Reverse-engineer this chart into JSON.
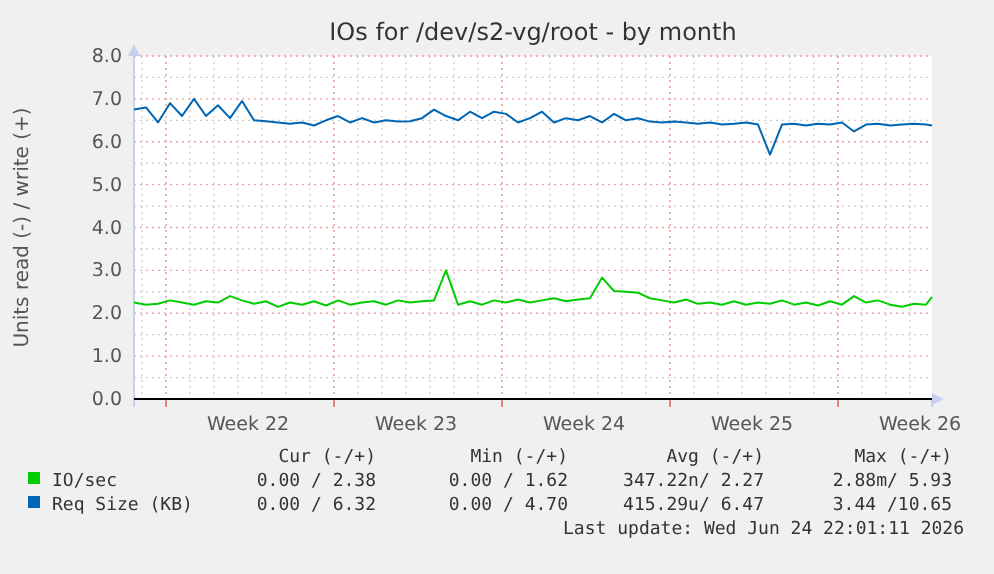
{
  "chart_data": {
    "type": "line",
    "title": "IOs for /dev/s2-vg/root - by month",
    "ylabel": "Units read (-) / write (+)",
    "xlim": [
      "2026-05-22T16:00",
      "2026-06-24T22:00"
    ],
    "xticks": [
      {
        "value": "2026-05-24T00:00",
        "label": null
      },
      {
        "value": "2026-05-27T10:00",
        "label": "Week 22"
      },
      {
        "value": "2026-05-31T00:00",
        "label": null
      },
      {
        "value": "2026-06-03T10:00",
        "label": "Week 23"
      },
      {
        "value": "2026-06-07T00:00",
        "label": null
      },
      {
        "value": "2026-06-10T10:00",
        "label": "Week 24"
      },
      {
        "value": "2026-06-14T00:00",
        "label": null
      },
      {
        "value": "2026-06-17T10:00",
        "label": "Week 25"
      },
      {
        "value": "2026-06-21T00:00",
        "label": null
      },
      {
        "value": "2026-06-24T10:00",
        "label": "Week 26"
      }
    ],
    "ylim": [
      0,
      8
    ],
    "yticks": [
      {
        "value": 0,
        "label": "0.0"
      },
      {
        "value": 1,
        "label": "1.0"
      },
      {
        "value": 2,
        "label": "2.0"
      },
      {
        "value": 3,
        "label": "3.0"
      },
      {
        "value": 4,
        "label": "4.0"
      },
      {
        "value": 5,
        "label": "5.0"
      },
      {
        "value": 6,
        "label": "6.0"
      },
      {
        "value": 7,
        "label": "7.0"
      },
      {
        "value": 8,
        "label": "8.0"
      }
    ],
    "grid": true,
    "legend": "bottom",
    "marker": "none",
    "line_style": "solid",
    "x": [
      "2026-05-22T16:00",
      "2026-05-23T04:00",
      "2026-05-23T16:00",
      "2026-05-24T04:00",
      "2026-05-24T16:00",
      "2026-05-25T04:00",
      "2026-05-25T16:00",
      "2026-05-26T04:00",
      "2026-05-26T16:00",
      "2026-05-27T04:00",
      "2026-05-27T16:00",
      "2026-05-28T04:00",
      "2026-05-28T16:00",
      "2026-05-29T04:00",
      "2026-05-29T16:00",
      "2026-05-30T04:00",
      "2026-05-30T16:00",
      "2026-05-31T04:00",
      "2026-05-31T16:00",
      "2026-06-01T04:00",
      "2026-06-01T16:00",
      "2026-06-02T04:00",
      "2026-06-02T16:00",
      "2026-06-03T04:00",
      "2026-06-03T16:00",
      "2026-06-04T04:00",
      "2026-06-04T16:00",
      "2026-06-05T04:00",
      "2026-06-05T16:00",
      "2026-06-06T04:00",
      "2026-06-06T16:00",
      "2026-06-07T04:00",
      "2026-06-07T16:00",
      "2026-06-08T04:00",
      "2026-06-08T16:00",
      "2026-06-09T04:00",
      "2026-06-09T16:00",
      "2026-06-10T04:00",
      "2026-06-10T16:00",
      "2026-06-11T04:00",
      "2026-06-11T16:00",
      "2026-06-12T04:00",
      "2026-06-12T16:00",
      "2026-06-13T04:00",
      "2026-06-13T16:00",
      "2026-06-14T04:00",
      "2026-06-14T16:00",
      "2026-06-15T04:00",
      "2026-06-15T16:00",
      "2026-06-16T04:00",
      "2026-06-16T16:00",
      "2026-06-17T04:00",
      "2026-06-17T16:00",
      "2026-06-18T04:00",
      "2026-06-18T16:00",
      "2026-06-19T04:00",
      "2026-06-19T16:00",
      "2026-06-20T04:00",
      "2026-06-20T16:00",
      "2026-06-21T04:00",
      "2026-06-21T16:00",
      "2026-06-22T04:00",
      "2026-06-22T16:00",
      "2026-06-23T04:00",
      "2026-06-23T16:00",
      "2026-06-24T04:00",
      "2026-06-24T16:00",
      "2026-06-24T22:00"
    ],
    "series": [
      {
        "name": "IO/sec",
        "color": "#00cc00",
        "values": [
          2.25,
          2.2,
          2.22,
          2.3,
          2.25,
          2.2,
          2.28,
          2.25,
          2.4,
          2.3,
          2.22,
          2.28,
          2.15,
          2.25,
          2.2,
          2.28,
          2.18,
          2.3,
          2.2,
          2.25,
          2.28,
          2.2,
          2.3,
          2.25,
          2.28,
          2.3,
          3.0,
          2.2,
          2.28,
          2.2,
          2.3,
          2.25,
          2.32,
          2.25,
          2.3,
          2.35,
          2.28,
          2.32,
          2.35,
          2.83,
          2.52,
          2.5,
          2.48,
          2.35,
          2.3,
          2.25,
          2.32,
          2.22,
          2.25,
          2.2,
          2.28,
          2.2,
          2.25,
          2.22,
          2.3,
          2.2,
          2.25,
          2.18,
          2.28,
          2.2,
          2.4,
          2.25,
          2.3,
          2.2,
          2.15,
          2.22,
          2.2,
          2.38
        ]
      },
      {
        "name": "Req Size (KB)",
        "color": "#0066b3",
        "values": [
          6.75,
          6.8,
          6.45,
          6.9,
          6.6,
          7.0,
          6.6,
          6.85,
          6.55,
          6.95,
          6.5,
          6.48,
          6.45,
          6.42,
          6.45,
          6.38,
          6.5,
          6.6,
          6.45,
          6.55,
          6.45,
          6.5,
          6.47,
          6.48,
          6.55,
          6.75,
          6.6,
          6.5,
          6.7,
          6.55,
          6.7,
          6.65,
          6.45,
          6.55,
          6.7,
          6.45,
          6.55,
          6.5,
          6.6,
          6.45,
          6.65,
          6.5,
          6.55,
          6.47,
          6.45,
          6.47,
          6.45,
          6.42,
          6.45,
          6.4,
          6.42,
          6.45,
          6.4,
          5.7,
          6.4,
          6.42,
          6.38,
          6.42,
          6.4,
          6.45,
          6.24,
          6.4,
          6.42,
          6.38,
          6.4,
          6.42,
          6.4,
          6.38
        ]
      }
    ],
    "annotations": [
      "Cur (-/+)",
      "Min (-/+)",
      "Avg (-/+)",
      "Max (-/+)",
      "0.00 / 2.38",
      "0.00 / 1.62",
      "347.22n/ 2.27",
      "2.88m/ 5.93",
      "0.00 / 6.32",
      "0.00 / 4.70",
      "415.29u/ 6.47",
      "3.44 /10.65",
      "Last update: Wed Jun 24 22:01:11 2026"
    ]
  }
}
